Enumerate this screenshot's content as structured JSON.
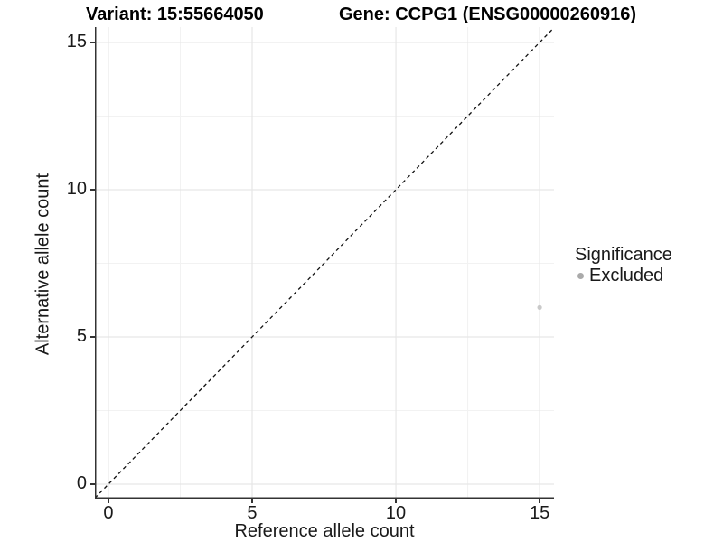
{
  "titles": {
    "variant": "Variant: 15:55664050",
    "gene": "Gene: CCPG1 (ENSG00000260916)"
  },
  "chart_data": {
    "type": "scatter",
    "xlabel": "Reference allele count",
    "ylabel": "Alternative allele count",
    "xlim": [
      -0.47,
      15.5
    ],
    "ylim": [
      -0.49,
      15.52
    ],
    "x_ticks": [
      0,
      5,
      10,
      15
    ],
    "y_ticks": [
      0,
      5,
      10,
      15
    ],
    "x_minor_ticks": [
      2.5,
      7.5,
      12.5
    ],
    "y_minor_ticks": [
      2.5,
      7.5,
      12.5
    ],
    "grid": "major+minor",
    "reference_line": {
      "type": "abline",
      "slope": 1,
      "intercept": 0,
      "style": "dashed",
      "color": "#111111"
    },
    "series": [
      {
        "name": "Excluded",
        "color": "#c9c9c9",
        "marker": "circle",
        "points": [
          {
            "x": 15,
            "y": 6
          }
        ]
      }
    ],
    "legend": {
      "title": "Significance",
      "position": "right",
      "items": [
        {
          "label": "Excluded",
          "color": "#aaaaaa",
          "marker": "circle"
        }
      ]
    }
  },
  "colors": {
    "axis_line": "#333333",
    "major_grid": "#e6e6e6",
    "minor_grid": "#f2f2f2",
    "tick_text": "#1a1a1a",
    "background": "#ffffff"
  }
}
